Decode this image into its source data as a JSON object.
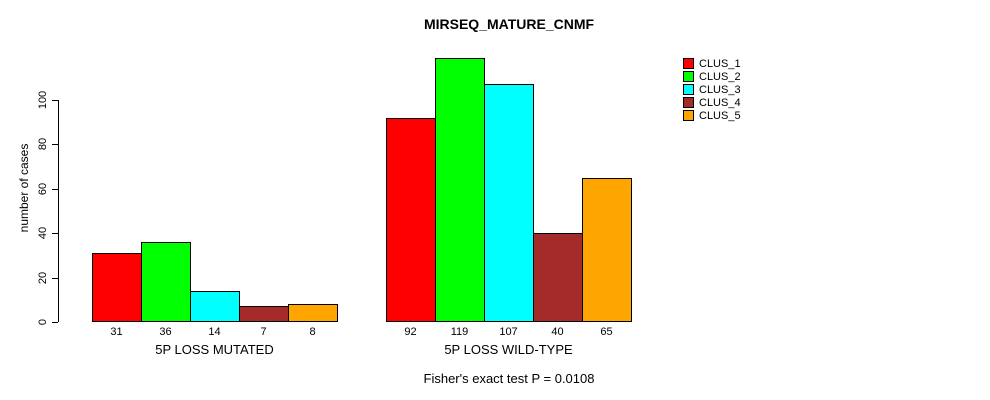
{
  "page": {
    "title": "MIRSEQ_MATURE_CNMF"
  },
  "chart_data": {
    "type": "bar",
    "title": "MIRSEQ_MATURE_CNMF",
    "xlabel": "",
    "ylabel": "number of cases",
    "categories": [
      "5P LOSS MUTATED",
      "5P LOSS WILD-TYPE"
    ],
    "series": [
      {
        "name": "CLUS_1",
        "color": "#ff0000",
        "values": [
          31,
          92
        ]
      },
      {
        "name": "CLUS_2",
        "color": "#00ff00",
        "values": [
          36,
          119
        ]
      },
      {
        "name": "CLUS_3",
        "color": "#00ffff",
        "values": [
          14,
          107
        ]
      },
      {
        "name": "CLUS_4",
        "color": "#a52a2a",
        "values": [
          7,
          40
        ]
      },
      {
        "name": "CLUS_5",
        "color": "#ffa500",
        "values": [
          8,
          65
        ]
      }
    ],
    "bar_value_labels": [
      [
        "31",
        "36",
        "14",
        "7",
        "8"
      ],
      [
        "92",
        "119",
        "107",
        "40",
        "65"
      ]
    ],
    "ylim": [
      0,
      119
    ],
    "yticks": [
      0,
      20,
      40,
      60,
      80,
      100
    ],
    "grid": false,
    "legend_position": "top-right",
    "legend_entries": [
      "CLUS_1",
      "CLUS_2",
      "CLUS_3",
      "CLUS_4",
      "CLUS_5"
    ],
    "footnote": "Fisher's exact test P = 0.0108",
    "background_color": "#ffffff",
    "bar_border_color": "#000000",
    "text_color": "#000000"
  }
}
